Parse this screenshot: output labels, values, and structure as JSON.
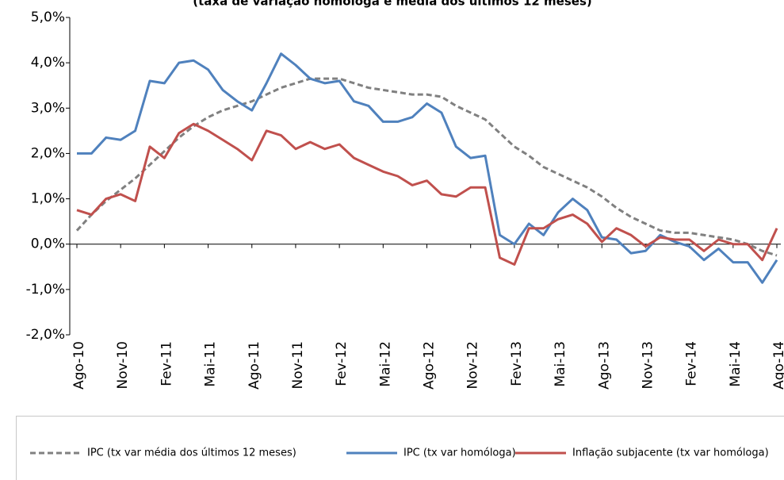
{
  "chart_data": {
    "type": "line",
    "subtitle": "(taxa de variação homóloga e média dos últimos 12 meses)",
    "categories": [
      "Ago-10",
      null,
      null,
      "Nov-10",
      null,
      null,
      "Fev-11",
      null,
      null,
      "Mai-11",
      null,
      null,
      "Ago-11",
      null,
      null,
      "Nov-11",
      null,
      null,
      "Fev-12",
      null,
      null,
      "Mai-12",
      null,
      null,
      "Ago-12",
      null,
      null,
      "Nov-12",
      null,
      null,
      "Fev-13",
      null,
      null,
      "Mai-13",
      null,
      null,
      "Ago-13",
      null,
      null,
      "Nov-13",
      null,
      null,
      "Fev-14",
      null,
      null,
      "Mai-14",
      null,
      null,
      "Ago-14"
    ],
    "series": [
      {
        "name": "IPC (tx var média dos últimos 12 meses)",
        "color": "#808080",
        "dashed": true,
        "values": [
          0.3,
          0.65,
          0.95,
          1.2,
          1.45,
          1.75,
          2.05,
          2.35,
          2.6,
          2.8,
          2.95,
          3.05,
          3.15,
          3.3,
          3.45,
          3.55,
          3.65,
          3.65,
          3.65,
          3.55,
          3.45,
          3.4,
          3.35,
          3.3,
          3.3,
          3.25,
          3.05,
          2.9,
          2.75,
          2.45,
          2.15,
          1.95,
          1.7,
          1.55,
          1.4,
          1.25,
          1.05,
          0.8,
          0.6,
          0.45,
          0.3,
          0.25,
          0.25,
          0.2,
          0.15,
          0.1,
          0.0,
          -0.15,
          -0.25
        ]
      },
      {
        "name": "IPC (tx var homóloga)",
        "color": "#4f81bd",
        "dashed": false,
        "values": [
          2.0,
          2.0,
          2.35,
          2.3,
          2.5,
          3.6,
          3.55,
          4.0,
          4.05,
          3.85,
          3.4,
          3.15,
          2.95,
          3.55,
          4.2,
          3.95,
          3.65,
          3.55,
          3.6,
          3.15,
          3.05,
          2.7,
          2.7,
          2.8,
          3.1,
          2.9,
          2.15,
          1.9,
          1.95,
          0.2,
          0.0,
          0.45,
          0.2,
          0.7,
          1.0,
          0.75,
          0.15,
          0.1,
          -0.2,
          -0.15,
          0.2,
          0.05,
          -0.05,
          -0.35,
          -0.1,
          -0.4,
          -0.4,
          -0.85,
          -0.35
        ]
      },
      {
        "name": "Inflação subjacente (tx var homóloga)",
        "color": "#c0504d",
        "dashed": false,
        "values": [
          0.75,
          0.65,
          1.0,
          1.1,
          0.95,
          2.15,
          1.9,
          2.45,
          2.65,
          2.5,
          2.3,
          2.1,
          1.85,
          2.5,
          2.4,
          2.1,
          2.25,
          2.1,
          2.2,
          1.9,
          1.75,
          1.6,
          1.5,
          1.3,
          1.4,
          1.1,
          1.05,
          1.25,
          1.25,
          -0.3,
          -0.45,
          0.35,
          0.35,
          0.55,
          0.65,
          0.45,
          0.05,
          0.35,
          0.2,
          -0.05,
          0.15,
          0.1,
          0.1,
          -0.15,
          0.1,
          0.0,
          0.0,
          -0.35,
          0.35
        ]
      }
    ],
    "ylim": [
      -2,
      5
    ],
    "yticks": [
      {
        "value": -2,
        "label": "-2,0%"
      },
      {
        "value": -1,
        "label": "-1,0%"
      },
      {
        "value": 0,
        "label": "0,0%"
      },
      {
        "value": 1,
        "label": "1,0%"
      },
      {
        "value": 2,
        "label": "2,0%"
      },
      {
        "value": 3,
        "label": "3,0%"
      },
      {
        "value": 4,
        "label": "4,0%"
      },
      {
        "value": 5,
        "label": "5,0%"
      }
    ],
    "grid": false,
    "legend": "bottom"
  }
}
